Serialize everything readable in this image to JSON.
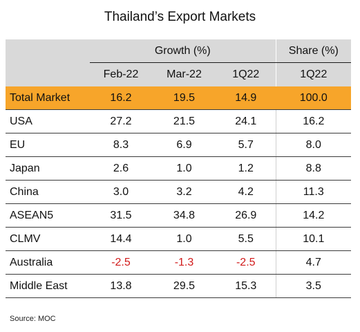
{
  "title": "Thailand’s Export Markets",
  "source": "Source: MOC",
  "header": {
    "group_growth": "Growth (%)",
    "group_share": "Share (%)",
    "columns": [
      "Feb-22",
      "Mar-22",
      "1Q22",
      "1Q22"
    ]
  },
  "colors": {
    "highlight": "#f7a52a",
    "header_bg": "#d9d9d9",
    "negative": "#d11a1a"
  },
  "chart_data": {
    "type": "table",
    "title": "Thailand’s Export Markets",
    "column_groups": [
      {
        "name": "Growth (%)",
        "columns": [
          "Feb-22",
          "Mar-22",
          "1Q22"
        ]
      },
      {
        "name": "Share (%)",
        "columns": [
          "1Q22"
        ]
      }
    ],
    "rows": [
      {
        "market": "Total Market",
        "values": [
          "16.2",
          "19.5",
          "14.9",
          "100.0"
        ]
      },
      {
        "market": "USA",
        "values": [
          "27.2",
          "21.5",
          "24.1",
          "16.2"
        ]
      },
      {
        "market": "EU",
        "values": [
          "8.3",
          "6.9",
          "5.7",
          "8.0"
        ]
      },
      {
        "market": "Japan",
        "values": [
          "2.6",
          "1.0",
          "1.2",
          "8.8"
        ]
      },
      {
        "market": "China",
        "values": [
          "3.0",
          "3.2",
          "4.2",
          "11.3"
        ]
      },
      {
        "market": "ASEAN5",
        "values": [
          "31.5",
          "34.8",
          "26.9",
          "14.2"
        ]
      },
      {
        "market": "CLMV",
        "values": [
          "14.4",
          "1.0",
          "5.5",
          "10.1"
        ]
      },
      {
        "market": "Australia",
        "values": [
          "-2.5",
          "-1.3",
          "-2.5",
          "4.7"
        ]
      },
      {
        "market": "Middle East",
        "values": [
          "13.8",
          "29.5",
          "15.3",
          "3.5"
        ]
      }
    ],
    "source": "Source: MOC"
  }
}
